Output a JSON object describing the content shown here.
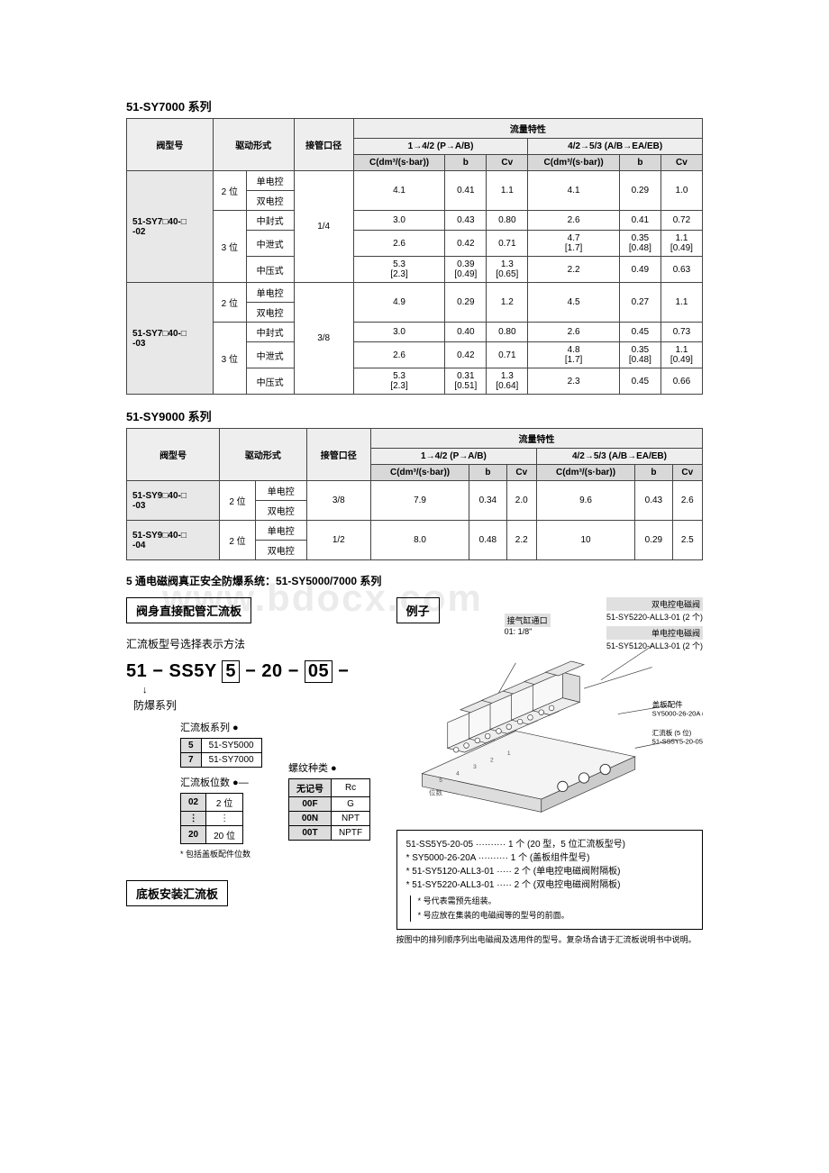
{
  "sy7000": {
    "title": "51-SY7000 系列",
    "headers": {
      "model": "阀型号",
      "drive": "驱动形式",
      "port": "接管口径",
      "flow": "流量特性",
      "flow1": "1→4/2 (P→A/B)",
      "flow2": "4/2→5/3 (A/B→EA/EB)",
      "c": "C(dm³/(s·bar))",
      "b": "b",
      "cv": "Cv"
    },
    "models": [
      {
        "name": "51-SY7□40-□\n-02",
        "port": "1/4",
        "groups": [
          {
            "pos": "2 位",
            "rows": [
              {
                "drive": "单电控",
                "c1": "4.1",
                "b1": "0.41",
                "cv1": "1.1",
                "c2": "4.1",
                "b2": "0.29",
                "cv2": "1.0",
                "merge": true
              },
              {
                "drive": "双电控"
              }
            ]
          },
          {
            "pos": "3 位",
            "rows": [
              {
                "drive": "中封式",
                "c1": "3.0",
                "b1": "0.43",
                "cv1": "0.80",
                "c2": "2.6",
                "b2": "0.41",
                "cv2": "0.72"
              },
              {
                "drive": "中泄式",
                "c1": "2.6",
                "b1": "0.42",
                "cv1": "0.71",
                "c2": "4.7\n[1.7]",
                "b2": "0.35\n[0.48]",
                "cv2": "1.1\n[0.49]"
              },
              {
                "drive": "中压式",
                "c1": "5.3\n[2.3]",
                "b1": "0.39\n[0.49]",
                "cv1": "1.3\n[0.65]",
                "c2": "2.2",
                "b2": "0.49",
                "cv2": "0.63"
              }
            ]
          }
        ]
      },
      {
        "name": "51-SY7□40-□\n-03",
        "port": "3/8",
        "groups": [
          {
            "pos": "2 位",
            "rows": [
              {
                "drive": "单电控",
                "c1": "4.9",
                "b1": "0.29",
                "cv1": "1.2",
                "c2": "4.5",
                "b2": "0.27",
                "cv2": "1.1",
                "merge": true
              },
              {
                "drive": "双电控"
              }
            ]
          },
          {
            "pos": "3 位",
            "rows": [
              {
                "drive": "中封式",
                "c1": "3.0",
                "b1": "0.40",
                "cv1": "0.80",
                "c2": "2.6",
                "b2": "0.45",
                "cv2": "0.73"
              },
              {
                "drive": "中泄式",
                "c1": "2.6",
                "b1": "0.42",
                "cv1": "0.71",
                "c2": "4.8\n[1.7]",
                "b2": "0.35\n[0.48]",
                "cv2": "1.1\n[0.49]"
              },
              {
                "drive": "中压式",
                "c1": "5.3\n[2.3]",
                "b1": "0.31\n[0.51]",
                "cv1": "1.3\n[0.64]",
                "c2": "2.3",
                "b2": "0.45",
                "cv2": "0.66"
              }
            ]
          }
        ]
      }
    ]
  },
  "sy9000": {
    "title": "51-SY9000 系列",
    "models": [
      {
        "name": "51-SY9□40-□\n-03",
        "pos": "2 位",
        "port": "3/8",
        "rows": [
          {
            "drive": "单电控",
            "c1": "7.9",
            "b1": "0.34",
            "cv1": "2.0",
            "c2": "9.6",
            "b2": "0.43",
            "cv2": "2.6",
            "merge": true
          },
          {
            "drive": "双电控"
          }
        ]
      },
      {
        "name": "51-SY9□40-□\n-04",
        "pos": "2 位",
        "port": "1/2",
        "rows": [
          {
            "drive": "单电控",
            "c1": "8.0",
            "b1": "0.48",
            "cv1": "2.2",
            "c2": "10",
            "b2": "0.29",
            "cv2": "2.5",
            "merge": true
          },
          {
            "drive": "双电控"
          }
        ]
      }
    ]
  },
  "subtitle": "5 通电磁阀真正安全防爆系统：51-SY5000/7000 系列",
  "config": {
    "box1": "阀身直接配管汇流板",
    "config_title": "汇流板型号选择表示方法",
    "part_prefix": "51 − SS5Y",
    "part_box1": "5",
    "part_mid": "− 20 −",
    "part_box2": "05",
    "part_suffix": "−",
    "explosion_series": "防爆系列",
    "manifold_series_label": "汇流板系列 ●",
    "manifold_series": [
      {
        "code": "5",
        "name": "51-SY5000"
      },
      {
        "code": "7",
        "name": "51-SY7000"
      }
    ],
    "positions_label": "汇流板位数 ●—",
    "positions": [
      {
        "code": "02",
        "name": "2 位"
      },
      {
        "code": "⋮",
        "name": "⋮"
      },
      {
        "code": "20",
        "name": "20 位"
      }
    ],
    "positions_note": "* 包括盖板配件位数",
    "thread_label": "螺纹种类 ●",
    "thread": [
      {
        "code": "无记号",
        "name": "Rc"
      },
      {
        "code": "00F",
        "name": "G"
      },
      {
        "code": "00N",
        "name": "NPT"
      },
      {
        "code": "00T",
        "name": "NPTF"
      }
    ],
    "box2": "底板安装汇流板"
  },
  "example": {
    "title": "例子",
    "callouts": {
      "dual_sol": "双电控电磁阀",
      "dual_sol_pn": "51-SY5220-ALL3-01 (2 个)",
      "single_sol": "单电控电磁阀",
      "single_sol_pn": "51-SY5120-ALL3-01 (2 个)",
      "port_label": "接气缸通口",
      "port_val": "01: 1/8\"",
      "cover": "盖板配件",
      "cover_pn": "SY5000-26-20A (1 个)",
      "manifold": "汇流板 (5 位)",
      "manifold_pn": "51-SS5Y5-20-05",
      "stations": "位数"
    },
    "parts": [
      "51-SS5Y5-20-05 ·········· 1 个 (20 型，5 位汇流板型号)",
      "* SY5000-26-20A ·········· 1 个 (盖板组件型号)",
      "* 51-SY5120-ALL3-01 ····· 2 个 (单电控电磁阀附隔板)",
      "* 51-SY5220-ALL3-01 ····· 2 个 (双电控电磁阀附隔板)"
    ],
    "note1": "* 号代表需预先组装。",
    "note2": "* 号应放在集装的电磁阀等的型号的前面。",
    "note3": "按图中的排列顺序列出电磁阀及选用件的型号。复杂场合请于汇流板说明书中说明。"
  },
  "watermark": "www.bdocx.com"
}
